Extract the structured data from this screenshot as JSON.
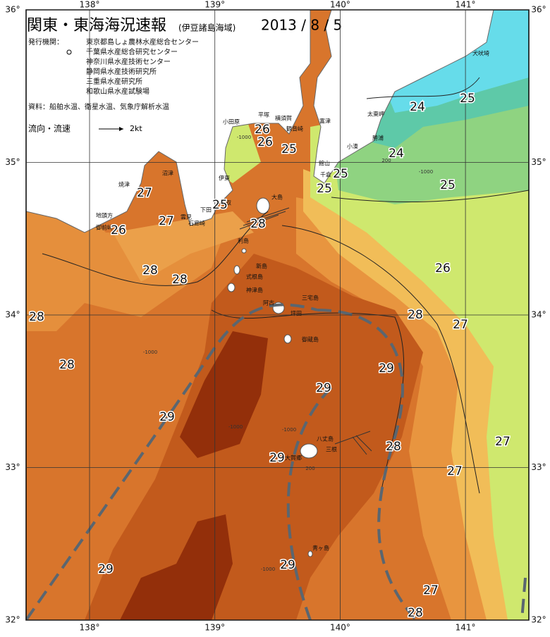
{
  "header": {
    "title": "関東・東海海況速報",
    "subtitle": "(伊豆諸島海域)",
    "date": "2013 / 8 / 5"
  },
  "info": {
    "publisher_label": "発行機関：",
    "publishers": [
      "東京都島しょ農林水産総合センター",
      "千葉県水産総合研究センター",
      "神奈川県水産技術センター",
      "静岡県水産技術研究所",
      "三重県水産研究所",
      "和歌山県水産試験場"
    ],
    "source": "資料：船舶水温、衛星水温、気象庁解析水温",
    "current_label": "流向・流速",
    "current_scale": "2kt"
  },
  "map": {
    "lon_ticks": [
      {
        "value": 138,
        "label": "138°"
      },
      {
        "value": 139,
        "label": "139°"
      },
      {
        "value": 140,
        "label": "140°"
      },
      {
        "value": 141,
        "label": "141°"
      }
    ],
    "lat_ticks": [
      {
        "value": 36,
        "label": "36°"
      },
      {
        "value": 35,
        "label": "35°"
      },
      {
        "value": 34,
        "label": "34°"
      },
      {
        "value": 33,
        "label": "33°"
      },
      {
        "value": 32,
        "label": "32°"
      }
    ],
    "places": [
      "犬吠埼",
      "太東岬",
      "勝浦",
      "小湊",
      "富津",
      "観音崎",
      "横須賀",
      "平塚",
      "小田原",
      "伊東",
      "館山",
      "千倉",
      "焼津",
      "地頭方",
      "御前崎",
      "沼津",
      "稲取",
      "下田",
      "雲見",
      "石廊崎",
      "大島",
      "利島",
      "新島",
      "式根島",
      "神津島",
      "三宅島",
      "阿古",
      "坪田",
      "御蔵島",
      "八丈島",
      "三根",
      "大賀郷",
      "青ヶ島"
    ],
    "isotherm_labels": [
      24,
      25,
      24,
      25,
      26,
      26,
      25,
      25,
      25,
      27,
      25,
      27,
      26,
      28,
      28,
      28,
      26,
      28,
      28,
      27,
      28,
      29,
      29,
      29,
      28,
      27,
      29,
      27,
      29,
      29,
      27,
      28
    ],
    "depth_labels": [
      -1000,
      -1000,
      200,
      -1000,
      -1000,
      -1000,
      200,
      -1000
    ]
  }
}
